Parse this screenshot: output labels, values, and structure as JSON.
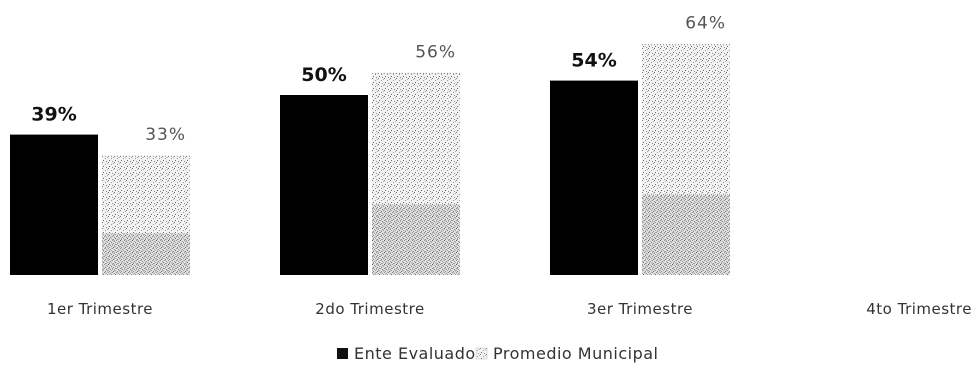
{
  "chart_data": {
    "type": "bar",
    "title": "",
    "xlabel": "",
    "ylabel": "",
    "ylim": [
      0,
      70
    ],
    "grid": false,
    "legend_position": "bottom",
    "categories": [
      "1er Trimestre",
      "2do Trimestre",
      "3er Trimestre",
      "4to Trimestre"
    ],
    "series": [
      {
        "name": "Ente Evaluado",
        "values": [
          39,
          50,
          54,
          null
        ],
        "labels": [
          "39%",
          "50%",
          "54%",
          ""
        ],
        "color": "#000000",
        "pattern": "solid"
      },
      {
        "name": "Promedio Municipal",
        "values": [
          33,
          56,
          64,
          null
        ],
        "labels": [
          "33%",
          "56%",
          "64%",
          ""
        ],
        "color": "#9a9a9a",
        "pattern": "dotted"
      }
    ]
  },
  "legend": {
    "marker_solid": "■",
    "marker_dotted": "⁘"
  }
}
